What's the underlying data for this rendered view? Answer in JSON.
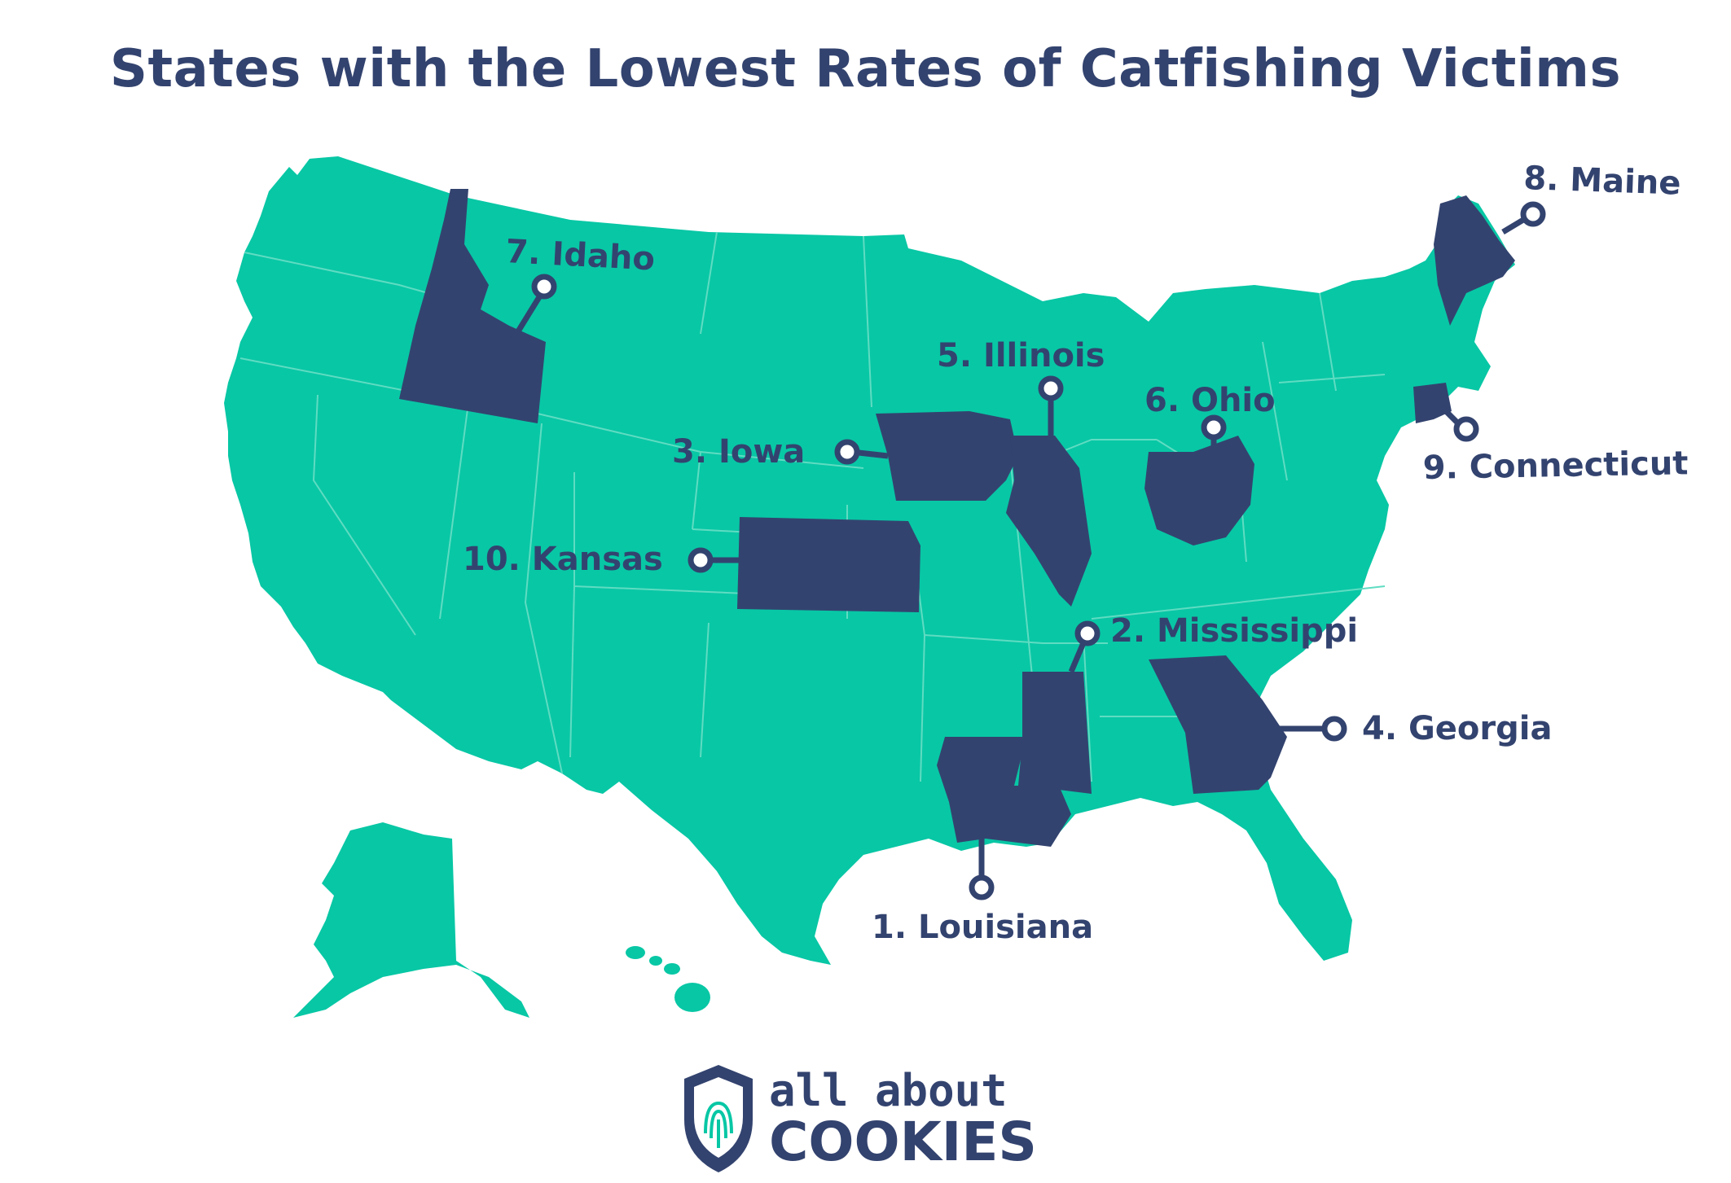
{
  "title": "States with the Lowest Rates of Catfishing Victims",
  "colors": {
    "base_state": "#08c7a5",
    "highlight_state": "#33436f",
    "border": "#5fdcc2",
    "text": "#33436f"
  },
  "rankings": [
    {
      "rank": 1,
      "label": "1. Louisiana"
    },
    {
      "rank": 2,
      "label": "2. Mississippi"
    },
    {
      "rank": 3,
      "label": "3. Iowa"
    },
    {
      "rank": 4,
      "label": "4. Georgia"
    },
    {
      "rank": 5,
      "label": "5. Illinois"
    },
    {
      "rank": 6,
      "label": "6. Ohio"
    },
    {
      "rank": 7,
      "label": "7. Idaho"
    },
    {
      "rank": 8,
      "label": "8. Maine"
    },
    {
      "rank": 9,
      "label": "9. Connecticut"
    },
    {
      "rank": 10,
      "label": "10. Kansas"
    }
  ],
  "logo": {
    "line1": "all about",
    "line2": "COOKIES",
    "icon": "shield-fingerprint-icon"
  }
}
